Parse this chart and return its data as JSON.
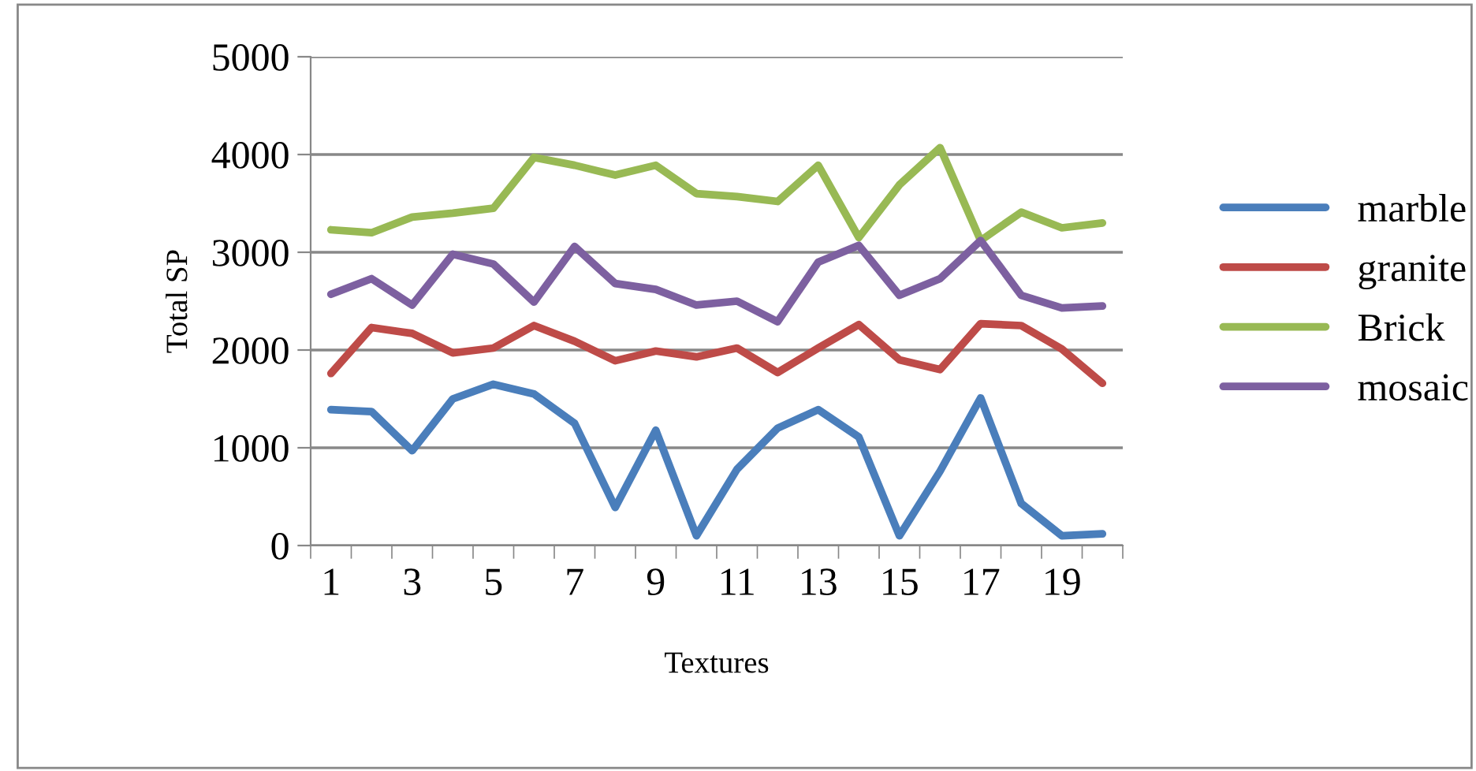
{
  "chart_data": {
    "type": "line",
    "xlabel": "Textures",
    "ylabel": "Total SP",
    "categories": [
      "1",
      null,
      "3",
      null,
      "5",
      null,
      "7",
      null,
      "9",
      null,
      "11",
      null,
      "13",
      null,
      "15",
      null,
      "17",
      null,
      "19",
      null
    ],
    "series": [
      {
        "name": "marble",
        "color": "#4a7ebb",
        "values": [
          1390,
          1370,
          970,
          1500,
          1650,
          1550,
          1250,
          390,
          1180,
          100,
          780,
          1200,
          1390,
          1110,
          100,
          760,
          1510,
          430,
          100,
          120
        ]
      },
      {
        "name": "granite",
        "color": "#be4b48",
        "values": [
          1760,
          2230,
          2170,
          1970,
          2020,
          2250,
          2090,
          1890,
          1990,
          1930,
          2020,
          1770,
          2020,
          2260,
          1900,
          1800,
          2270,
          2250,
          2010,
          1660
        ]
      },
      {
        "name": "Brick",
        "color": "#98b954",
        "values": [
          3230,
          3200,
          3360,
          3400,
          3450,
          3970,
          3890,
          3790,
          3890,
          3600,
          3570,
          3520,
          3890,
          3150,
          3690,
          4070,
          3120,
          3410,
          3250,
          3300
        ]
      },
      {
        "name": "mosaic",
        "color": "#7d60a0",
        "values": [
          2570,
          2730,
          2460,
          2980,
          2880,
          2490,
          3060,
          2680,
          2620,
          2460,
          2500,
          2290,
          2900,
          3070,
          2560,
          2730,
          3120,
          2560,
          2430,
          2450
        ]
      }
    ],
    "ylim": [
      0,
      5000
    ],
    "yticks": [
      0,
      1000,
      2000,
      3000,
      4000,
      5000
    ],
    "grid": "y",
    "legend": "right",
    "marker": "none",
    "line_style": "solid"
  }
}
